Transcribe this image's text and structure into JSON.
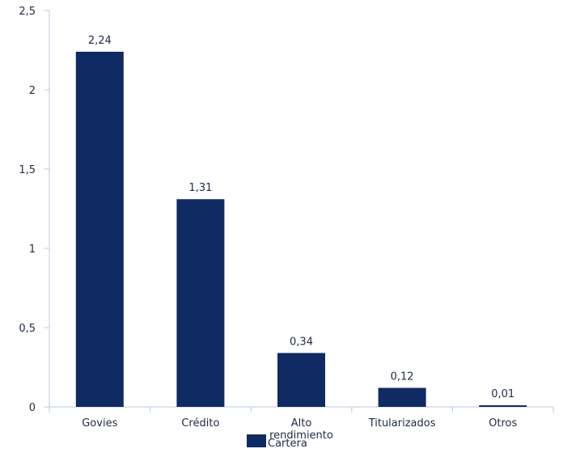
{
  "chart_data": {
    "type": "bar",
    "categories": [
      "Govies",
      "Crédito",
      "Alto rendimiento",
      "Titularizados",
      "Otros"
    ],
    "category_lines": [
      [
        "Govies"
      ],
      [
        "Crédito"
      ],
      [
        "Alto",
        "rendimiento"
      ],
      [
        "Titularizados"
      ],
      [
        "Otros"
      ]
    ],
    "series": [
      {
        "name": "Cartera",
        "values": [
          2.24,
          1.31,
          0.34,
          0.12,
          0.01
        ]
      }
    ],
    "value_labels": [
      "2,24",
      "1,31",
      "0,34",
      "0,12",
      "0,01"
    ],
    "y_ticks": [
      0,
      0.5,
      1,
      1.5,
      2,
      2.5
    ],
    "y_tick_labels": [
      "0",
      "0,5",
      "1",
      "1,5",
      "2",
      "2,5"
    ],
    "ylim": [
      0,
      2.5
    ],
    "title": "",
    "xlabel": "",
    "ylabel": "",
    "legend_position": "bottom",
    "grid": false,
    "colors": {
      "bar": "#102a63",
      "axis": "#b9cde0",
      "text": "#1f2a44"
    }
  }
}
